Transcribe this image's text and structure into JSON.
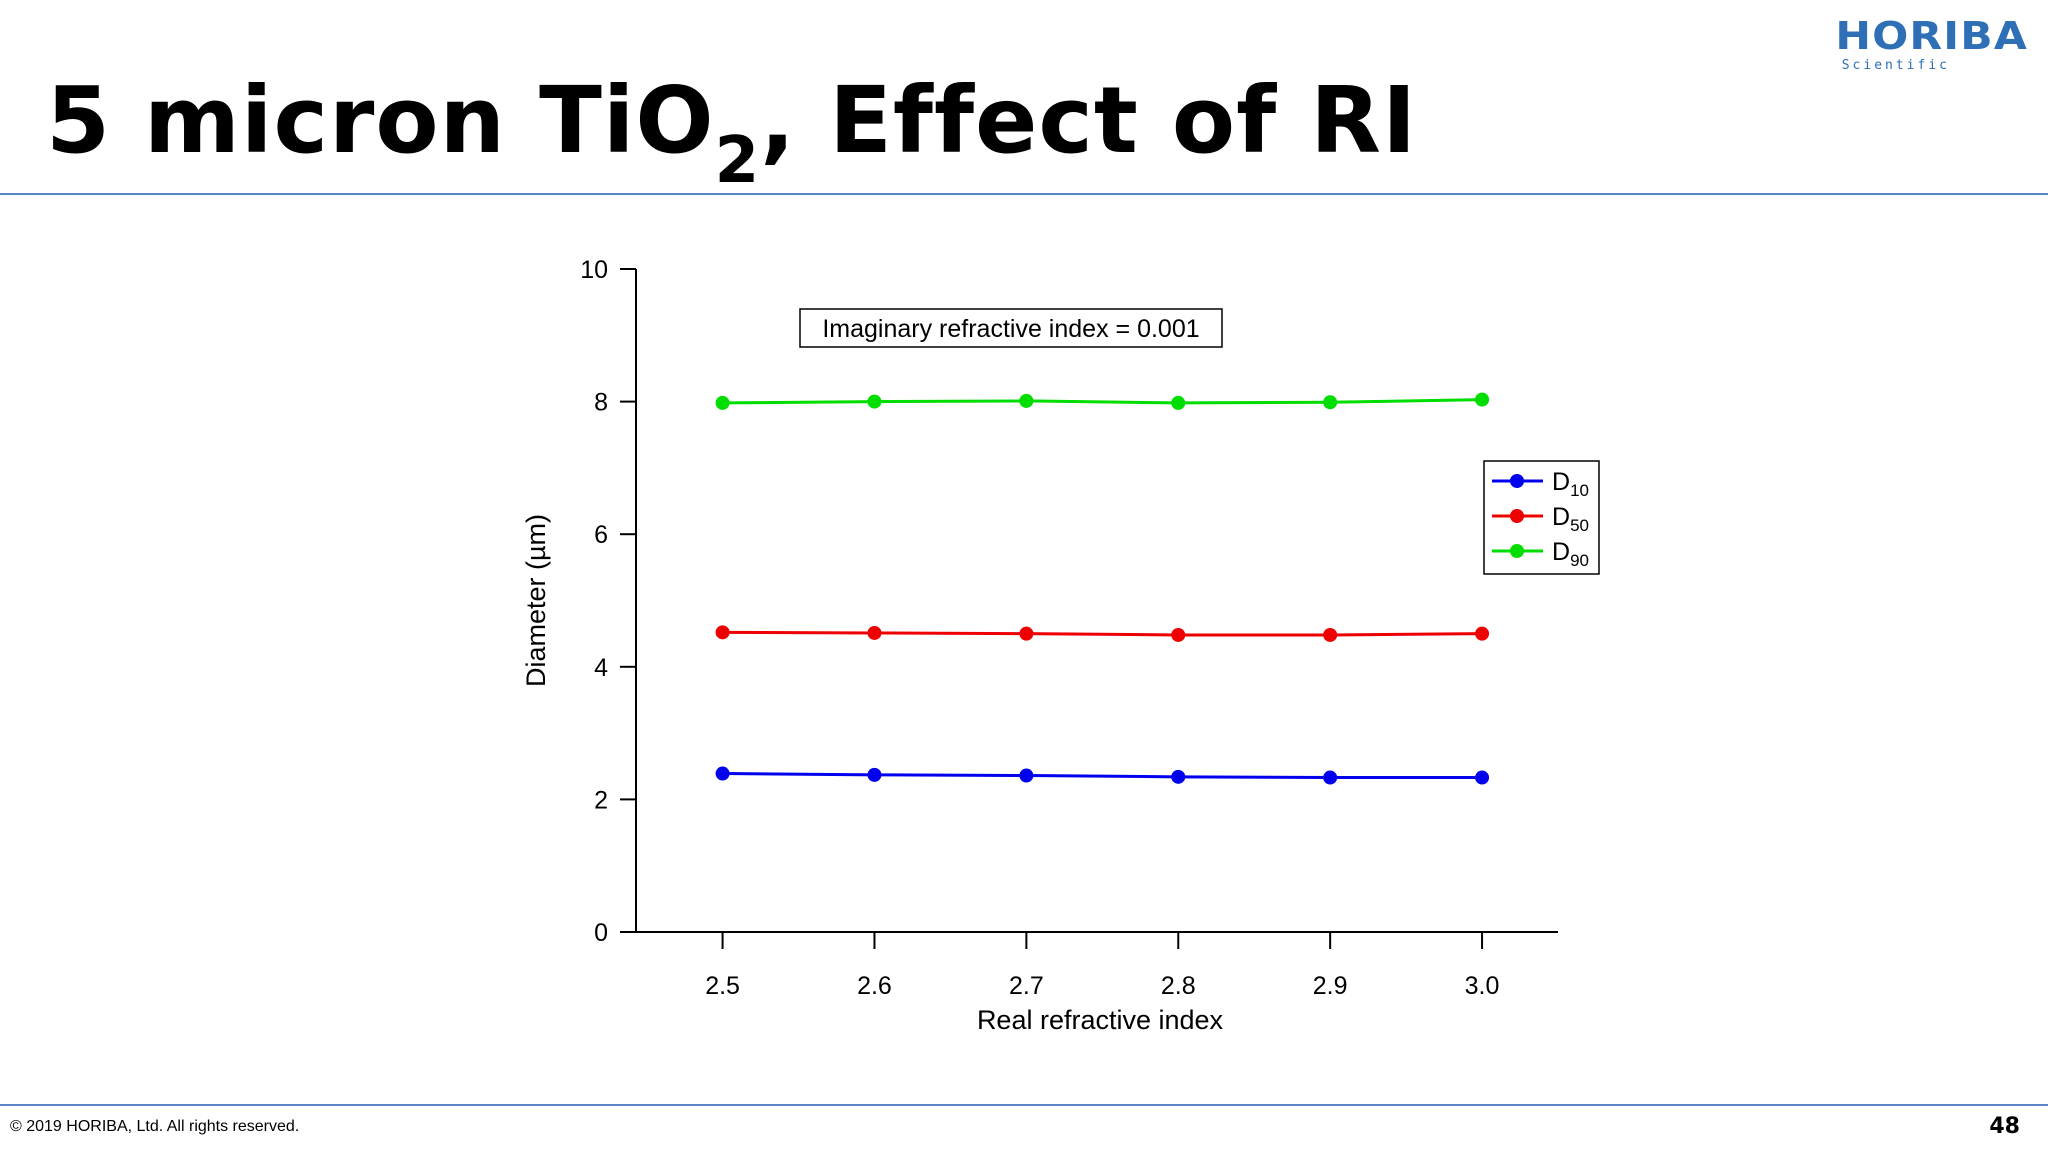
{
  "slide": {
    "title_main": "5 micron TiO",
    "title_sub": "2",
    "title_rest": ", Effect of RI",
    "logo_main": "HORIBA",
    "logo_sub": "Scientific",
    "footer": "© 2019 HORIBA, Ltd. All rights reserved.",
    "page_number": "48"
  },
  "colors": {
    "accent_rule": "#5a84c8",
    "logo": "#2e6fb5"
  },
  "chart_data": {
    "type": "line",
    "title": "",
    "xlabel": "Real refractive index",
    "ylabel": "Diameter (µm)",
    "annotation": "Imaginary refractive index = 0.001",
    "x": [
      2.5,
      2.6,
      2.7,
      2.8,
      2.9,
      3.0
    ],
    "x_tick_labels": [
      "2.5",
      "2.6",
      "2.7",
      "2.8",
      "2.9",
      "3.0"
    ],
    "xlim": [
      2.443,
      3.05
    ],
    "ylim": [
      0,
      10
    ],
    "y_ticks": [
      0,
      2,
      4,
      6,
      8,
      10
    ],
    "y_tick_labels": [
      "0",
      "2",
      "4",
      "6",
      "8",
      "10"
    ],
    "grid": false,
    "legend_position": "right",
    "series": [
      {
        "name": "D",
        "subscript": "10",
        "color": "#0000ee",
        "values": [
          2.39,
          2.37,
          2.36,
          2.34,
          2.33,
          2.33
        ]
      },
      {
        "name": "D",
        "subscript": "50",
        "color": "#ee0000",
        "values": [
          4.52,
          4.51,
          4.5,
          4.48,
          4.48,
          4.5
        ]
      },
      {
        "name": "D",
        "subscript": "90",
        "color": "#00dd00",
        "values": [
          7.98,
          8.0,
          8.01,
          7.98,
          7.99,
          8.03
        ]
      }
    ]
  }
}
